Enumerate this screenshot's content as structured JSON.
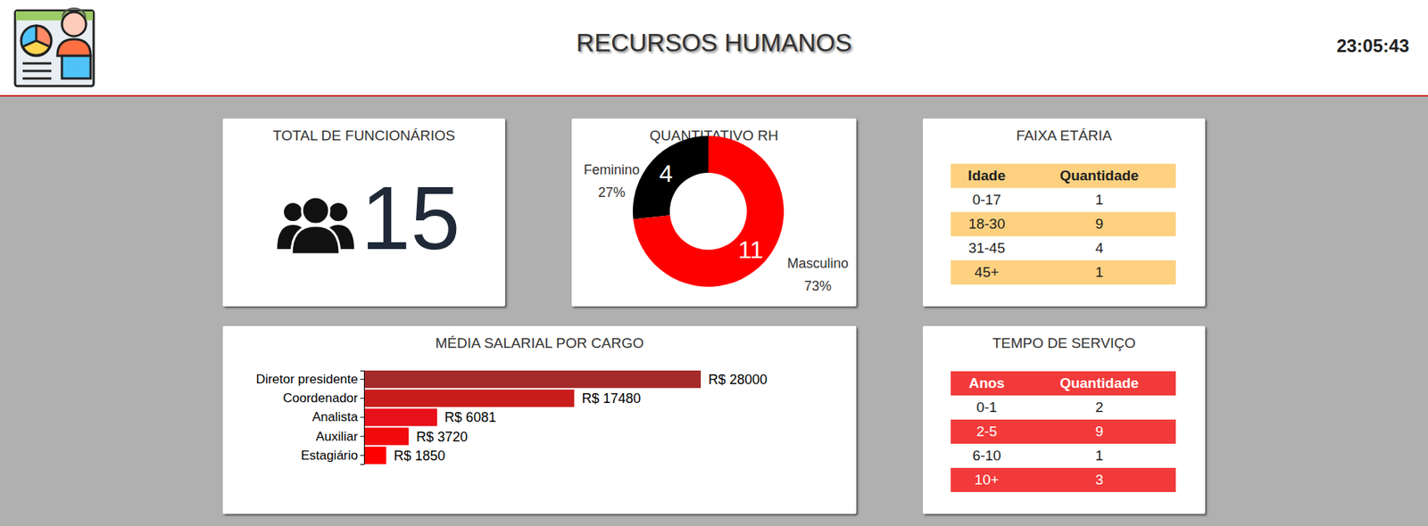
{
  "header": {
    "title": "RECURSOS HUMANOS",
    "time": "23:05:43"
  },
  "total": {
    "title": "TOTAL DE FUNCIONÁRIOS",
    "value": 15
  },
  "chart_data": [
    {
      "type": "donut",
      "title": "QUANTITATIVO RH",
      "categories": [
        "Feminino",
        "Masculino"
      ],
      "values": [
        4,
        11
      ],
      "percentages": [
        27,
        73
      ],
      "percentage_labels": [
        "27%",
        "73%"
      ],
      "colors": [
        "#000000",
        "#ff0000"
      ],
      "data_labels": true
    },
    {
      "type": "bar",
      "title": "MÉDIA SALARIAL POR CARGO",
      "orientation": "horizontal",
      "categories": [
        "Diretor presidente",
        "Coordenador",
        "Analista",
        "Auxiliar",
        "Estagiário"
      ],
      "values": [
        28000,
        17480,
        6081,
        3720,
        1850
      ],
      "value_labels": [
        "R$ 28000",
        "R$ 17480",
        "R$ 6081",
        "R$ 3720",
        "R$ 1850"
      ],
      "colors": [
        "#a52a2a",
        "#c91c1c",
        "#e8101a",
        "#f20b0b",
        "#ff0000"
      ],
      "xlim": [
        0,
        28000
      ],
      "data_labels": true,
      "tick_labels": "y"
    }
  ],
  "tables": [
    {
      "title": "FAIXA ETÁRIA",
      "columns": [
        "Idade",
        "Quantidade"
      ],
      "rows": [
        [
          "0-17",
          1
        ],
        [
          "18-30",
          9
        ],
        [
          "31-45",
          4
        ],
        [
          "45+",
          1
        ]
      ]
    },
    {
      "title": "TEMPO DE SERVIÇO",
      "columns": [
        "Anos",
        "Quantidade"
      ],
      "rows": [
        [
          "0-1",
          2
        ],
        [
          "2-5",
          9
        ],
        [
          "6-10",
          1
        ],
        [
          "10+",
          3
        ]
      ]
    }
  ]
}
